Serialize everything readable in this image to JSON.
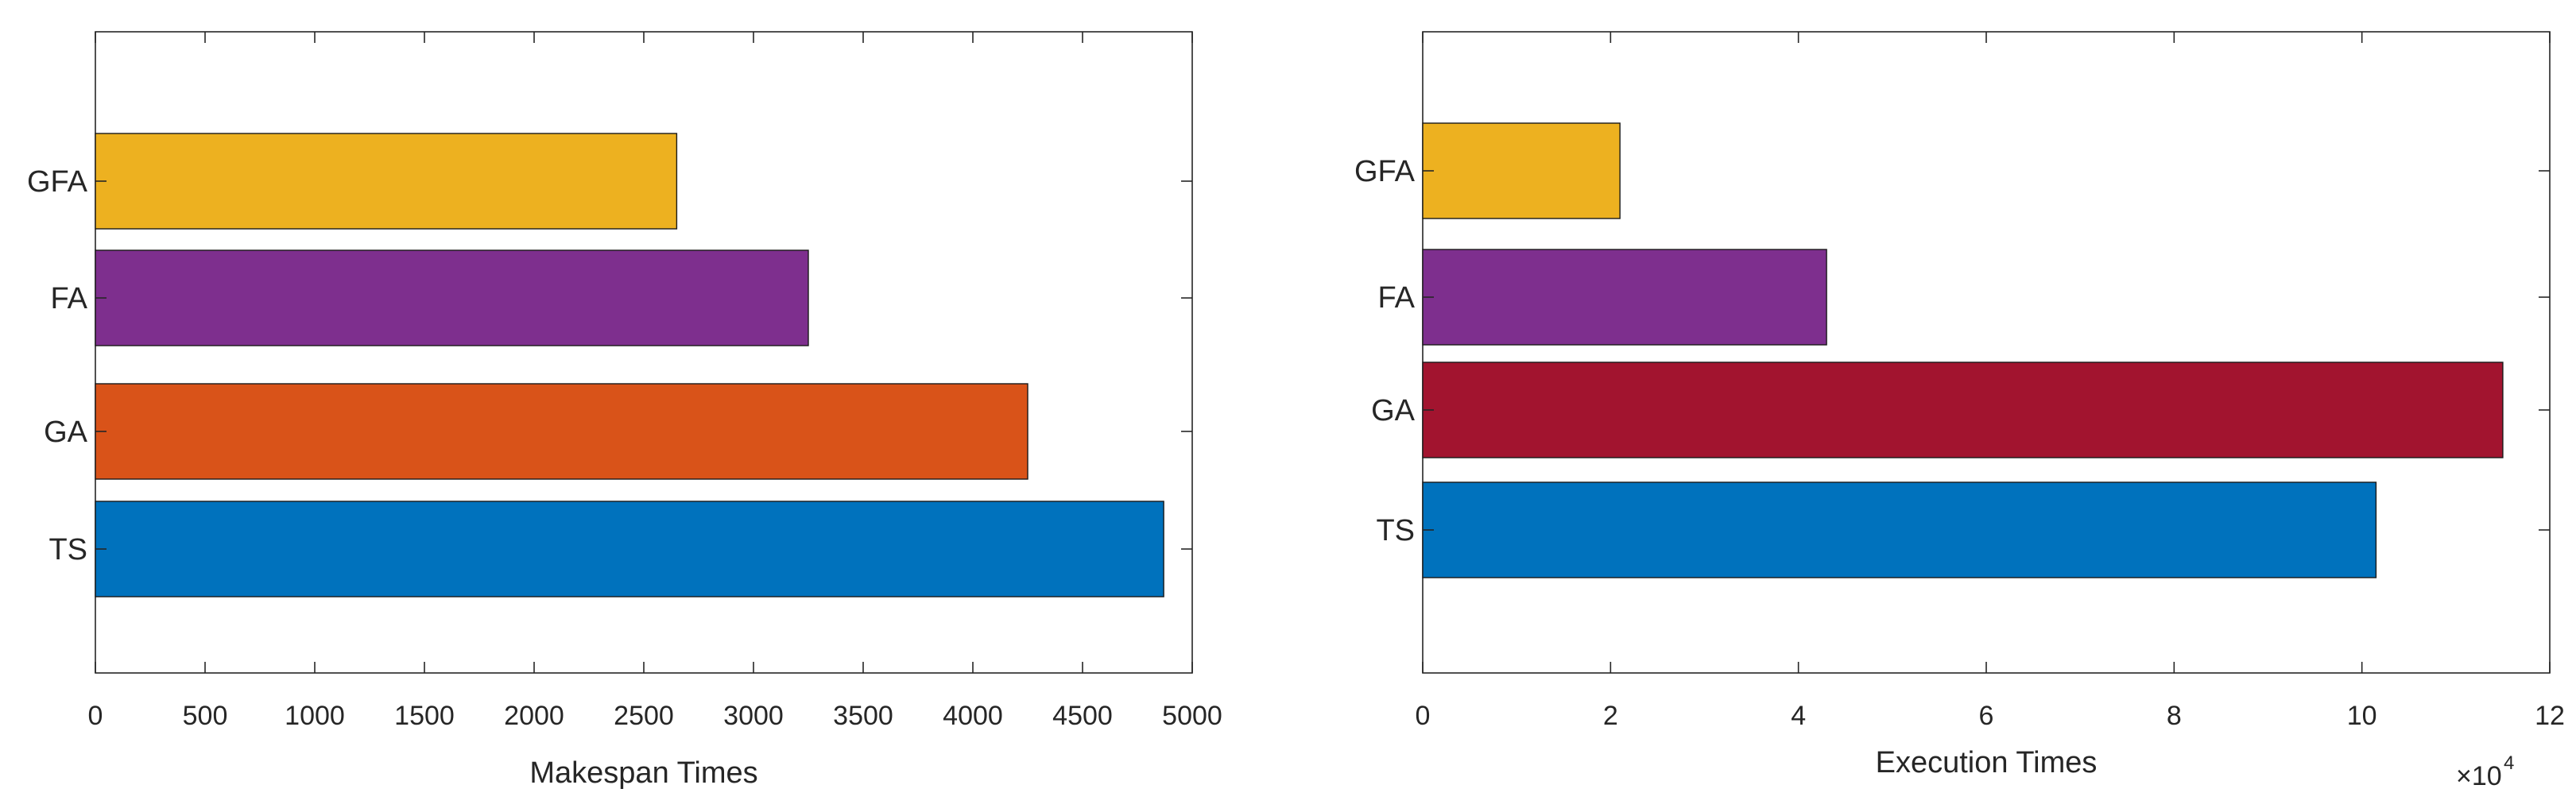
{
  "chart_data": [
    {
      "type": "bar",
      "orientation": "horizontal",
      "categories": [
        "TS",
        "GA",
        "FA",
        "GFA"
      ],
      "values": [
        4870,
        4250,
        3250,
        2650
      ],
      "colors": [
        "#0072BD",
        "#D95319",
        "#7E2F8E",
        "#EDB120"
      ],
      "xlim": [
        0,
        5000
      ],
      "xticks": [
        0,
        500,
        1000,
        1500,
        2000,
        2500,
        3000,
        3500,
        4000,
        4500,
        5000
      ],
      "xtick_labels": [
        "0",
        "500",
        "1000",
        "1500",
        "2000",
        "2500",
        "3000",
        "3500",
        "4000",
        "4500",
        "5000"
      ],
      "xlabel": "Makespan Times",
      "ylabel": "",
      "title": "",
      "exponent_label": ""
    },
    {
      "type": "bar",
      "orientation": "horizontal",
      "categories": [
        "TS",
        "GA",
        "FA",
        "GFA"
      ],
      "values": [
        10.15,
        11.5,
        4.3,
        2.1
      ],
      "colors": [
        "#0072BD",
        "#A2142F",
        "#7E2F8E",
        "#EDB120"
      ],
      "xlim": [
        0,
        12
      ],
      "xticks": [
        0,
        2,
        4,
        6,
        8,
        10,
        12
      ],
      "xtick_labels": [
        "0",
        "2",
        "4",
        "6",
        "8",
        "10",
        "12"
      ],
      "xlabel": "Execution Times",
      "ylabel": "",
      "title": "",
      "exponent_label": "×10",
      "exponent_power": "4"
    }
  ]
}
